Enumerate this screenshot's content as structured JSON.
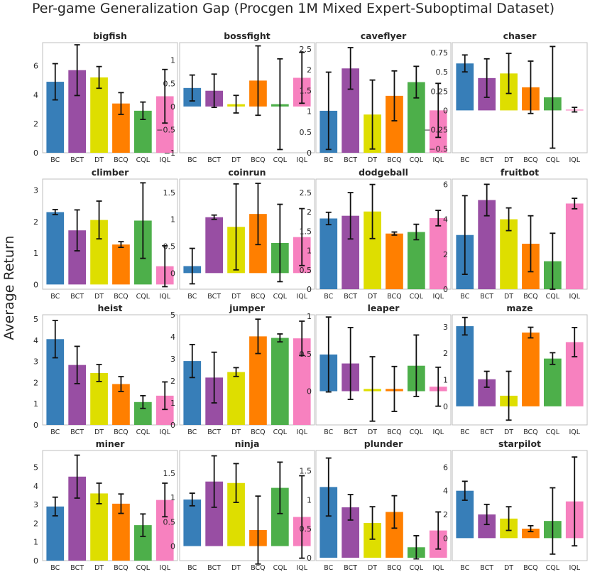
{
  "figure": {
    "title": "Per-game Generalization Gap (Procgen 1M Mixed Expert-Suboptimal Dataset)",
    "ylabel": "Average Return"
  },
  "colors": {
    "BC": "#377eb8",
    "BCT": "#984ea3",
    "DT": "#dede00",
    "BCQ": "#ff7f00",
    "CQL": "#4daf4a",
    "IQL": "#f781bf"
  },
  "chart_data": [
    {
      "type": "bar",
      "title": "bigfish",
      "categories": [
        "BC",
        "BCT",
        "DT",
        "BCQ",
        "CQL",
        "IQL"
      ],
      "values": [
        4.9,
        5.7,
        5.2,
        3.4,
        2.9,
        3.9
      ],
      "errors": [
        1.25,
        1.75,
        0.75,
        0.75,
        0.6,
        1.85
      ],
      "ylim": [
        0,
        7.6
      ],
      "yticks": [
        0,
        2,
        4,
        6
      ]
    },
    {
      "type": "bar",
      "title": "bossfight",
      "categories": [
        "BC",
        "BCT",
        "DT",
        "BCQ",
        "CQL",
        "IQL"
      ],
      "values": [
        0.4,
        0.34,
        0.05,
        0.56,
        0.05,
        0.62
      ],
      "errors": [
        0.28,
        0.36,
        0.19,
        0.75,
        0.98,
        0.55
      ],
      "ylim": [
        -1.0,
        1.38
      ],
      "yticks": [
        -1.0,
        -0.5,
        0.0,
        0.5,
        1.0
      ]
    },
    {
      "type": "bar",
      "title": "caveflyer",
      "categories": [
        "BC",
        "BCT",
        "DT",
        "BCQ",
        "CQL",
        "IQL"
      ],
      "values": [
        1.01,
        2.03,
        0.92,
        1.37,
        1.7,
        1.02
      ],
      "errors": [
        0.93,
        0.5,
        0.83,
        0.6,
        0.38,
        0.65
      ],
      "ylim": [
        0,
        2.65
      ],
      "yticks": [
        0.0,
        0.5,
        1.0,
        1.5,
        2.0,
        2.5
      ]
    },
    {
      "type": "bar",
      "title": "chaser",
      "categories": [
        "BC",
        "BCT",
        "DT",
        "BCQ",
        "CQL",
        "IQL"
      ],
      "values": [
        0.61,
        0.42,
        0.48,
        0.3,
        0.17,
        0.01
      ],
      "errors": [
        0.11,
        0.25,
        0.26,
        0.34,
        0.66,
        0.03
      ],
      "ylim": [
        -0.55,
        0.88
      ],
      "yticks": [
        -0.5,
        -0.25,
        0.0,
        0.25,
        0.5,
        0.75
      ]
    },
    {
      "type": "bar",
      "title": "climber",
      "categories": [
        "BC",
        "BCT",
        "DT",
        "BCQ",
        "CQL",
        "IQL"
      ],
      "values": [
        2.3,
        1.72,
        2.05,
        1.27,
        2.03,
        0.58
      ],
      "errors": [
        0.08,
        0.65,
        0.6,
        0.09,
        1.2,
        0.65
      ],
      "ylim": [
        -0.15,
        3.35
      ],
      "yticks": [
        0,
        1,
        2,
        3
      ]
    },
    {
      "type": "bar",
      "title": "coinrun",
      "categories": [
        "BC",
        "BCT",
        "DT",
        "BCQ",
        "CQL",
        "IQL"
      ],
      "values": [
        0.13,
        1.04,
        0.86,
        1.1,
        0.56,
        0.67
      ],
      "errors": [
        0.33,
        0.04,
        0.8,
        0.57,
        0.72,
        0.53
      ],
      "ylim": [
        -0.3,
        1.75
      ],
      "yticks": [
        0.0,
        0.5,
        1.0,
        1.5
      ]
    },
    {
      "type": "bar",
      "title": "dodgeball",
      "categories": [
        "BC",
        "BCT",
        "DT",
        "BCQ",
        "CQL",
        "IQL"
      ],
      "values": [
        1.83,
        1.9,
        2.01,
        1.44,
        1.48,
        1.84
      ],
      "errors": [
        0.16,
        0.6,
        0.7,
        0.04,
        0.2,
        0.2
      ],
      "ylim": [
        0,
        2.85
      ],
      "yticks": [
        0.0,
        0.5,
        1.0,
        1.5,
        2.0,
        2.5
      ]
    },
    {
      "type": "bar",
      "title": "fruitbot",
      "categories": [
        "BC",
        "BCT",
        "DT",
        "BCQ",
        "CQL",
        "IQL"
      ],
      "values": [
        3.1,
        5.1,
        4.0,
        2.6,
        1.6,
        4.9
      ],
      "errors": [
        2.25,
        0.9,
        0.65,
        1.6,
        1.6,
        0.3
      ],
      "ylim": [
        0,
        6.3
      ],
      "yticks": [
        0,
        2,
        4,
        6
      ]
    },
    {
      "type": "bar",
      "title": "heist",
      "categories": [
        "BC",
        "BCT",
        "DT",
        "BCQ",
        "CQL",
        "IQL"
      ],
      "values": [
        4.05,
        2.83,
        2.45,
        1.93,
        1.08,
        1.38
      ],
      "errors": [
        0.88,
        0.88,
        0.4,
        0.35,
        0.3,
        0.65
      ],
      "ylim": [
        0,
        5.2
      ],
      "yticks": [
        0,
        1,
        2,
        3,
        4,
        5
      ]
    },
    {
      "type": "bar",
      "title": "jumper",
      "categories": [
        "BC",
        "BCT",
        "DT",
        "BCQ",
        "CQL",
        "IQL"
      ],
      "values": [
        2.9,
        2.15,
        2.4,
        4.02,
        3.95,
        3.93
      ],
      "errors": [
        0.75,
        1.15,
        0.2,
        0.78,
        0.18,
        0.78
      ],
      "ylim": [
        0,
        5.0
      ],
      "yticks": [
        0,
        1,
        2,
        3,
        4,
        5
      ]
    },
    {
      "type": "bar",
      "title": "leaper",
      "categories": [
        "BC",
        "BCT",
        "DT",
        "BCQ",
        "CQL",
        "IQL"
      ],
      "values": [
        0.49,
        0.37,
        0.03,
        0.03,
        0.34,
        0.06
      ],
      "errors": [
        0.5,
        0.48,
        0.43,
        0.3,
        0.41,
        0.26
      ],
      "ylim": [
        -0.45,
        1.02
      ],
      "yticks": [
        0.0,
        0.5,
        1.0
      ]
    },
    {
      "type": "bar",
      "title": "maze",
      "categories": [
        "BC",
        "BCT",
        "DT",
        "BCQ",
        "CQL",
        "IQL"
      ],
      "values": [
        3.02,
        1.02,
        0.4,
        2.78,
        1.8,
        2.42
      ],
      "errors": [
        0.33,
        0.3,
        0.92,
        0.2,
        0.22,
        0.55
      ],
      "ylim": [
        -0.7,
        3.45
      ],
      "yticks": [
        0,
        1,
        2,
        3
      ]
    },
    {
      "type": "bar",
      "title": "miner",
      "categories": [
        "BC",
        "BCT",
        "DT",
        "BCQ",
        "CQL",
        "IQL"
      ],
      "values": [
        2.9,
        4.5,
        3.6,
        3.05,
        1.9,
        3.25
      ],
      "errors": [
        0.5,
        1.15,
        0.55,
        0.52,
        0.6,
        0.9
      ],
      "ylim": [
        0,
        5.9
      ],
      "yticks": [
        0,
        1,
        2,
        3,
        4,
        5
      ]
    },
    {
      "type": "bar",
      "title": "ninja",
      "categories": [
        "BC",
        "BCT",
        "DT",
        "BCQ",
        "CQL",
        "IQL"
      ],
      "values": [
        0.96,
        1.33,
        1.3,
        0.33,
        1.2,
        0.6
      ],
      "errors": [
        0.13,
        0.53,
        0.4,
        0.7,
        0.53,
        0.85
      ],
      "ylim": [
        -0.3,
        1.97
      ],
      "yticks": [
        0.0,
        0.5,
        1.0,
        1.5
      ]
    },
    {
      "type": "bar",
      "title": "plunder",
      "categories": [
        "BC",
        "BCT",
        "DT",
        "BCQ",
        "CQL",
        "IQL"
      ],
      "values": [
        1.22,
        0.87,
        0.6,
        0.79,
        0.18,
        0.47
      ],
      "errors": [
        0.5,
        0.22,
        0.28,
        0.28,
        0.2,
        0.32
      ],
      "ylim": [
        -0.05,
        1.85
      ],
      "yticks": [
        0.0,
        0.5,
        1.0,
        1.5
      ]
    },
    {
      "type": "bar",
      "title": "starpilot",
      "categories": [
        "BC",
        "BCT",
        "DT",
        "BCQ",
        "CQL",
        "IQL"
      ],
      "values": [
        4.0,
        2.0,
        1.65,
        0.8,
        1.45,
        3.1
      ],
      "errors": [
        0.8,
        0.85,
        1.0,
        0.25,
        2.8,
        3.75
      ],
      "ylim": [
        -1.9,
        7.4
      ],
      "yticks": [
        0,
        2,
        4,
        6
      ]
    }
  ]
}
